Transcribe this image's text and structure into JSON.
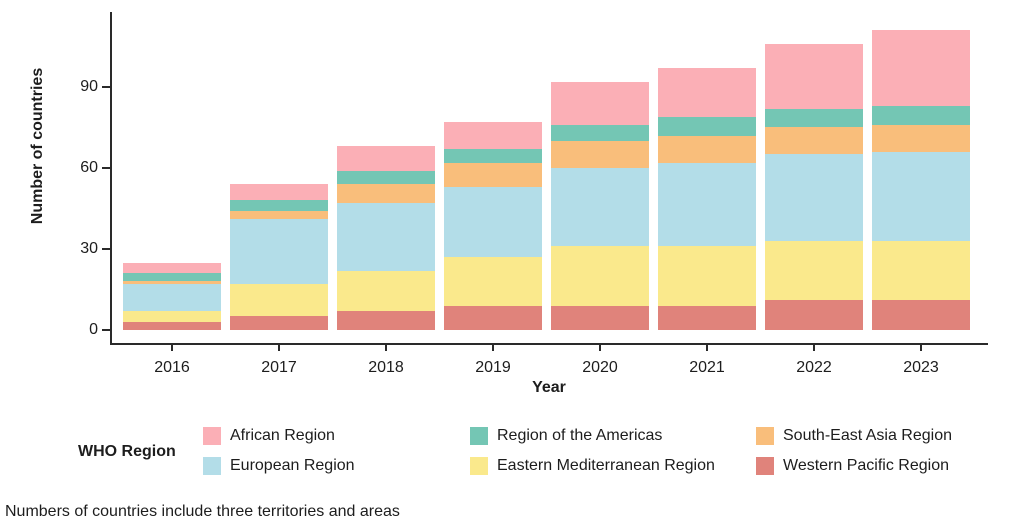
{
  "chart_data": {
    "type": "bar",
    "stacked": true,
    "title": "",
    "xlabel": "Year",
    "ylabel": "Number of countries",
    "categories": [
      "2016",
      "2017",
      "2018",
      "2019",
      "2020",
      "2021",
      "2022",
      "2023"
    ],
    "series": [
      {
        "name": "Western Pacific Region",
        "color": "#E0837B",
        "values": [
          3,
          5,
          7,
          9,
          9,
          9,
          11,
          11
        ]
      },
      {
        "name": "Eastern Mediterranean Region",
        "color": "#FAE98C",
        "values": [
          4,
          12,
          15,
          18,
          22,
          22,
          22,
          22
        ]
      },
      {
        "name": "European Region",
        "color": "#B3DDE8",
        "values": [
          10,
          24,
          25,
          26,
          29,
          31,
          32,
          33
        ]
      },
      {
        "name": "South-East Asia Region",
        "color": "#F9BE7B",
        "values": [
          1,
          3,
          7,
          9,
          10,
          10,
          10,
          10
        ]
      },
      {
        "name": "Region of the Americas",
        "color": "#74C6B4",
        "values": [
          3,
          4,
          5,
          5,
          6,
          7,
          7,
          7
        ]
      },
      {
        "name": "African Region",
        "color": "#FBAFB6",
        "values": [
          4,
          6,
          9,
          10,
          16,
          18,
          24,
          28
        ]
      }
    ],
    "stack_order": "series listed bottom-to-top",
    "totals": [
      25,
      54,
      68,
      77,
      92,
      97,
      106,
      111
    ],
    "yticks": [
      0,
      30,
      60,
      90
    ],
    "ylim": [
      0,
      115
    ],
    "grid": false,
    "legend_position": "bottom",
    "legend_title": "WHO Region",
    "legend_columns": [
      [
        "African Region",
        "European Region"
      ],
      [
        "Region of the Americas",
        "Eastern Mediterranean Region"
      ],
      [
        "South-East Asia Region",
        "Western Pacific Region"
      ]
    ],
    "caption": "Numbers of countries include three territories and areas"
  },
  "colors": {
    "axis": "#2a2a2a",
    "text": "#1d1d1d",
    "background": "#ffffff"
  }
}
